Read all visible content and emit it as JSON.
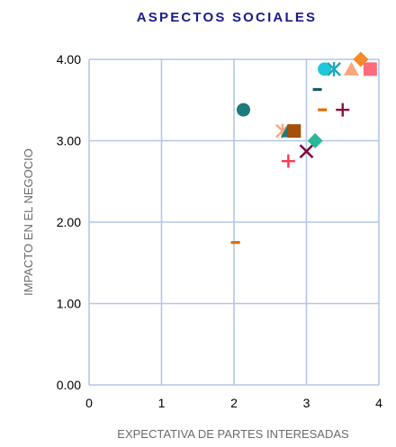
{
  "chart_data": {
    "type": "scatter",
    "title": "ASPECTOS SOCIALES",
    "xlabel": "EXPECTATIVA DE PARTES INTERESADAS",
    "ylabel": "IMPACTO EN EL NEGOCIO",
    "xlim": [
      0,
      4
    ],
    "ylim": [
      0,
      4
    ],
    "x_ticks": [
      "0",
      "1",
      "2",
      "3",
      "4"
    ],
    "y_ticks": [
      "0.00",
      "1.00",
      "2.00",
      "3.00",
      "4.00"
    ],
    "grid": true,
    "legend": "none",
    "points": [
      {
        "x": 2.13,
        "y": 3.38,
        "marker": "circle",
        "color": "#1b7c7c"
      },
      {
        "x": 2.02,
        "y": 1.75,
        "marker": "dash",
        "color": "#e46c0a"
      },
      {
        "x": 2.67,
        "y": 3.12,
        "marker": "asterisk",
        "color": "#f7a87c"
      },
      {
        "x": 2.75,
        "y": 3.12,
        "marker": "triangle",
        "color": "#1b7c7c"
      },
      {
        "x": 2.83,
        "y": 3.12,
        "marker": "square",
        "color": "#a64f0a"
      },
      {
        "x": 2.75,
        "y": 2.75,
        "marker": "plus",
        "color": "#ff3b4e"
      },
      {
        "x": 3.0,
        "y": 2.87,
        "marker": "x",
        "color": "#7a0c3c"
      },
      {
        "x": 3.12,
        "y": 3.0,
        "marker": "diamond",
        "color": "#2bb89a"
      },
      {
        "x": 3.15,
        "y": 3.63,
        "marker": "dash",
        "color": "#1b5c6c"
      },
      {
        "x": 3.22,
        "y": 3.38,
        "marker": "dash",
        "color": "#e46c0a"
      },
      {
        "x": 3.5,
        "y": 3.38,
        "marker": "plus",
        "color": "#8b1040"
      },
      {
        "x": 3.25,
        "y": 3.88,
        "marker": "circle",
        "color": "#1fc8d8"
      },
      {
        "x": 3.38,
        "y": 3.88,
        "marker": "asterisk",
        "color": "#1fa8b8"
      },
      {
        "x": 3.62,
        "y": 3.88,
        "marker": "triangle",
        "color": "#f7a87c"
      },
      {
        "x": 3.75,
        "y": 4.0,
        "marker": "diamond",
        "color": "#f58a2a"
      },
      {
        "x": 3.88,
        "y": 3.88,
        "marker": "square",
        "color": "#ff6b7a"
      }
    ]
  }
}
